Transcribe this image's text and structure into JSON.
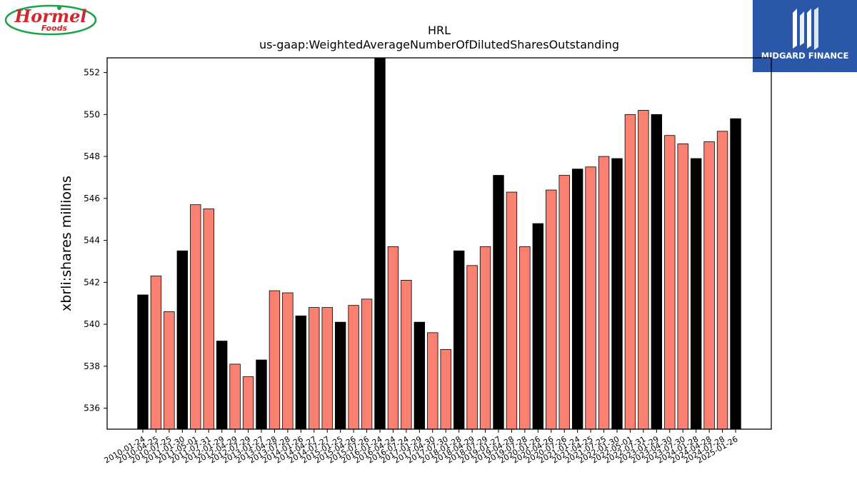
{
  "branding": {
    "left_logo_text": "Hormel",
    "left_logo_subtext": "Foods",
    "right_logo_text": "MIDGARD FINANCE",
    "colors": {
      "left_red": "#d22630",
      "left_green": "#1aa44a",
      "right_bg": "#2b57a8"
    }
  },
  "chart_data": {
    "type": "bar",
    "title": "HRL",
    "subtitle": "us-gaap:WeightedAverageNumberOfDilutedSharesOutstanding",
    "ylabel": "xbrli:shares millions",
    "xlabel": "",
    "ylim": [
      535,
      552.7
    ],
    "yticks": [
      536,
      538,
      540,
      542,
      544,
      546,
      548,
      550,
      552
    ],
    "colors": {
      "annual": "#000000",
      "quarterly": "#fa8072"
    },
    "categories": [
      "2010-01-24",
      "2010-04-25",
      "2010-07-25",
      "2011-01-30",
      "2011-05-01",
      "2011-07-31",
      "2012-01-29",
      "2012-04-29",
      "2012-07-29",
      "2013-01-27",
      "2013-04-28",
      "2013-07-28",
      "2014-01-26",
      "2014-04-27",
      "2014-07-27",
      "2015-01-25",
      "2015-04-26",
      "2015-07-26",
      "2016-01-24",
      "2016-04-24",
      "2016-07-24",
      "2017-01-29",
      "2017-04-30",
      "2017-07-30",
      "2018-01-28",
      "2018-04-29",
      "2018-07-29",
      "2019-01-27",
      "2019-04-28",
      "2019-07-28",
      "2020-01-26",
      "2020-04-26",
      "2020-07-26",
      "2021-01-24",
      "2021-04-25",
      "2021-07-25",
      "2022-01-30",
      "2022-05-01",
      "2022-07-31",
      "2023-01-29",
      "2023-04-30",
      "2023-07-30",
      "2024-01-28",
      "2024-04-28",
      "2024-07-28",
      "2025-01-26"
    ],
    "values": [
      541.4,
      542.3,
      540.6,
      543.5,
      545.7,
      545.5,
      539.2,
      538.1,
      537.5,
      538.3,
      541.6,
      541.5,
      540.4,
      540.8,
      540.8,
      540.1,
      540.9,
      541.2,
      552.7,
      543.7,
      542.1,
      540.1,
      539.6,
      538.8,
      543.5,
      542.8,
      543.7,
      547.1,
      546.3,
      543.7,
      544.8,
      546.4,
      547.1,
      547.4,
      547.5,
      548.0,
      547.9,
      550.0,
      550.2,
      550.0,
      549.0,
      548.6,
      547.9,
      548.7,
      549.2,
      549.8
    ],
    "kinds": [
      "A",
      "Q",
      "Q",
      "A",
      "Q",
      "Q",
      "A",
      "Q",
      "Q",
      "A",
      "Q",
      "Q",
      "A",
      "Q",
      "Q",
      "A",
      "Q",
      "Q",
      "A",
      "Q",
      "Q",
      "A",
      "Q",
      "Q",
      "A",
      "Q",
      "Q",
      "A",
      "Q",
      "Q",
      "A",
      "Q",
      "Q",
      "A",
      "Q",
      "Q",
      "A",
      "Q",
      "Q",
      "A",
      "Q",
      "Q",
      "A",
      "Q",
      "Q",
      "A"
    ]
  }
}
